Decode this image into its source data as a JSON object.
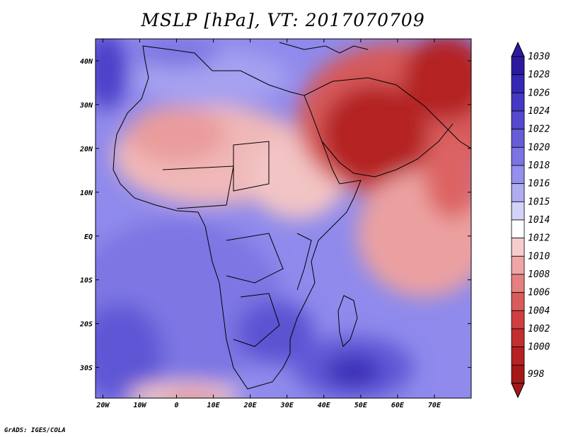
{
  "title": "MSLP [hPa], VT: 2017070709",
  "credit": "GrADS: IGES/COLA",
  "map": {
    "projection": "latlon",
    "lon_range": [
      -22,
      80
    ],
    "lat_range": [
      -37,
      45
    ],
    "lon_ticks": [
      {
        "value": -20,
        "label": "20W"
      },
      {
        "value": -10,
        "label": "10W"
      },
      {
        "value": 0,
        "label": "0"
      },
      {
        "value": 10,
        "label": "10E"
      },
      {
        "value": 20,
        "label": "20E"
      },
      {
        "value": 30,
        "label": "30E"
      },
      {
        "value": 40,
        "label": "40E"
      },
      {
        "value": 50,
        "label": "50E"
      },
      {
        "value": 60,
        "label": "60E"
      },
      {
        "value": 70,
        "label": "70E"
      }
    ],
    "lat_ticks": [
      {
        "value": 40,
        "label": "40N"
      },
      {
        "value": 30,
        "label": "30N"
      },
      {
        "value": 20,
        "label": "20N"
      },
      {
        "value": 10,
        "label": "10N"
      },
      {
        "value": 0,
        "label": "EQ"
      },
      {
        "value": -10,
        "label": "10S"
      },
      {
        "value": -20,
        "label": "20S"
      },
      {
        "value": -30,
        "label": "30S"
      }
    ]
  },
  "colorbar": {
    "labels": [
      "1030",
      "1028",
      "1026",
      "1024",
      "1022",
      "1020",
      "1018",
      "1016",
      "1015",
      "1014",
      "1012",
      "1010",
      "1008",
      "1006",
      "1004",
      "1002",
      "1000",
      "998"
    ],
    "colors": [
      "#2c1a9e",
      "#3528b4",
      "#4438c4",
      "#5449cf",
      "#655cd8",
      "#7b74e2",
      "#9590ec",
      "#b0acf2",
      "#d3d2f8",
      "#ffffff",
      "#f6cccc",
      "#efa6a6",
      "#e58080",
      "#da5b5b",
      "#cf3f3f",
      "#c22f2f",
      "#b42222",
      "#a51818"
    ]
  }
}
